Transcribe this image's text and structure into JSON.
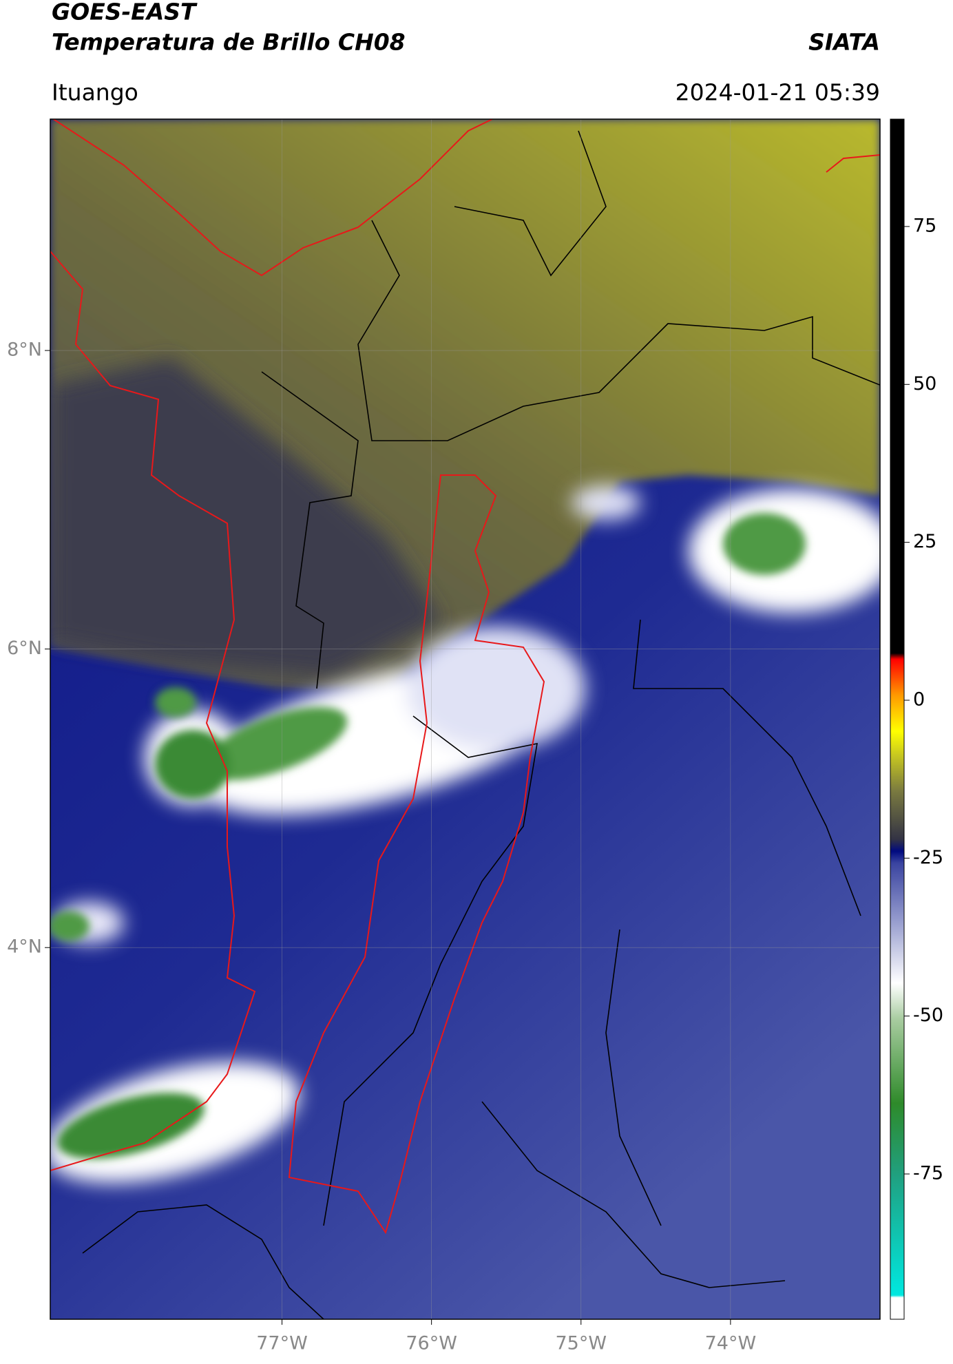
{
  "header": {
    "title": "GOES-EAST",
    "subtitle": "Temperatura de Brillo CH08",
    "source": "SIATA",
    "location": "Ituango",
    "datetime": "2024-01-21 05:39"
  },
  "map": {
    "xlim": [
      -78.55,
      -73.0
    ],
    "ylim": [
      1.51,
      9.55
    ],
    "xticks": [
      {
        "value": -77,
        "label": "77°W"
      },
      {
        "value": -76,
        "label": "76°W"
      },
      {
        "value": -75,
        "label": "75°W"
      },
      {
        "value": -74,
        "label": "74°W"
      }
    ],
    "yticks": [
      {
        "value": 4,
        "label": "4°N"
      },
      {
        "value": 6,
        "label": "6°N"
      },
      {
        "value": 8,
        "label": "8°N"
      }
    ],
    "grid": true
  },
  "colorbar": {
    "lim": [
      -98,
      92
    ],
    "ticks": [
      -75,
      -50,
      -25,
      0,
      25,
      50,
      75
    ]
  }
}
